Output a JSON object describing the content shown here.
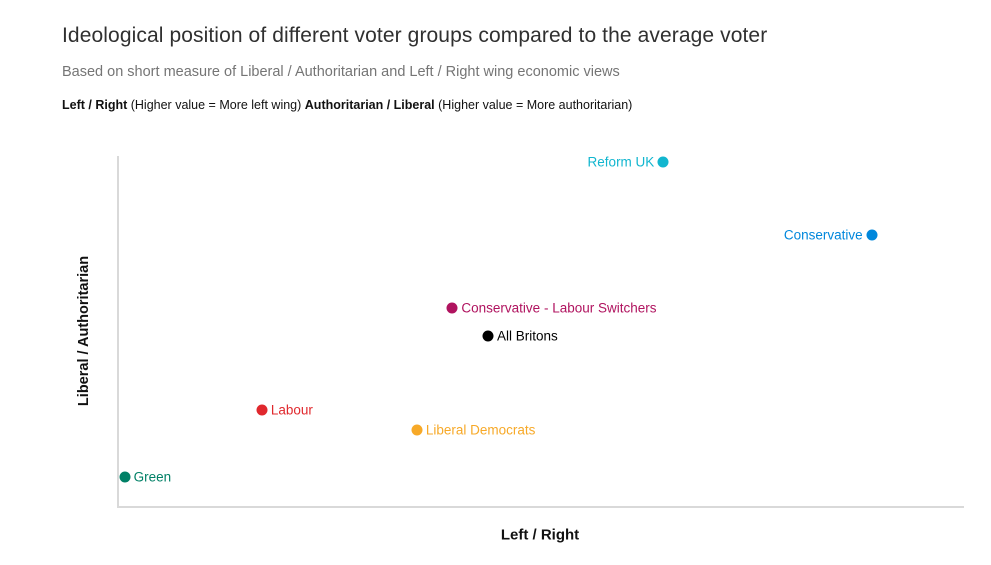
{
  "header": {
    "title": "Ideological position of different voter groups compared to the average voter",
    "subtitle": "Based on short measure of Liberal / Authoritarian and Left / Right wing economic views",
    "note": {
      "bold_1": "Left / Right",
      "regular_1": " (Higher value = More left wing) ",
      "bold_2": "Authoritarian / Liberal",
      "regular_2": " (Higher value = More authoritarian)"
    }
  },
  "chart_data": {
    "type": "scatter",
    "title": "Ideological position of different voter groups compared to the average voter",
    "subtitle": "Based on short measure of Liberal / Authoritarian and Left / Right wing economic views",
    "xlabel": "Left / Right",
    "ylabel": "Liberal / Authoritarian",
    "x_axis_note": "Higher value = More left wing",
    "y_axis_note": "Higher value = More authoritarian",
    "ticks_visible": false,
    "grid": false,
    "axis_line_color": "#d9d9d9",
    "points": [
      {
        "label": "Reform UK",
        "x_pct": 64.5,
        "y_pct": 1.7,
        "color": "#12b6cf",
        "label_side": "left"
      },
      {
        "label": "Conservative",
        "x_pct": 89.1,
        "y_pct": 22.4,
        "color": "#0087dc",
        "label_side": "left"
      },
      {
        "label": "Conservative - Labour Switchers",
        "x_pct": 39.6,
        "y_pct": 43.2,
        "color": "#b0135f",
        "label_side": "right"
      },
      {
        "label": "All Britons",
        "x_pct": 43.8,
        "y_pct": 51.4,
        "color": "#000000",
        "label_side": "right"
      },
      {
        "label": "Labour",
        "x_pct": 17.1,
        "y_pct": 72.4,
        "color": "#e0282d",
        "label_side": "right"
      },
      {
        "label": "Liberal Democrats",
        "x_pct": 35.4,
        "y_pct": 78.1,
        "color": "#f7a928",
        "label_side": "right"
      },
      {
        "label": "Green",
        "x_pct": 0.9,
        "y_pct": 91.5,
        "color": "#008066",
        "label_side": "right"
      }
    ]
  }
}
